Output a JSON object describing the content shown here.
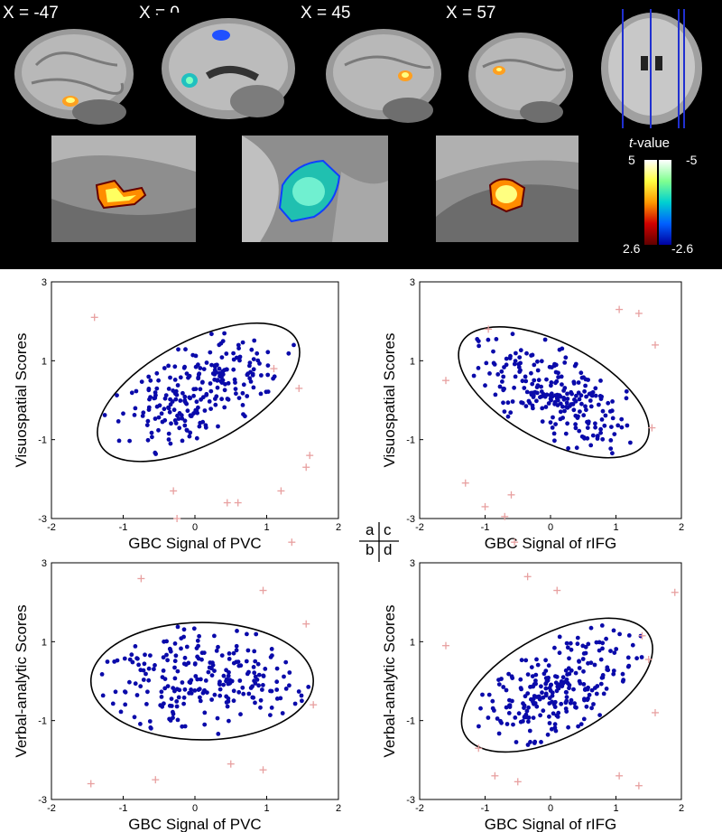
{
  "brain_figure": {
    "slice_labels": [
      "X = -47",
      "X = 0",
      "X = 45",
      "X = 57"
    ],
    "colorbar": {
      "title_italic": "t",
      "title_rest": "-value",
      "pos_max": "5",
      "neg_max": "-5",
      "pos_min": "2.6",
      "neg_min": "-2.6",
      "pos_colors": [
        "#ffffff",
        "#ffff40",
        "#ff9900",
        "#d00000",
        "#600000"
      ],
      "neg_colors": [
        "#ffffff",
        "#80ff90",
        "#00d0d0",
        "#0060ff",
        "#0000a0"
      ]
    }
  },
  "panel_key": {
    "a": "a",
    "b": "b",
    "c": "c",
    "d": "d"
  },
  "chart_data": [
    {
      "panel": "a",
      "type": "scatter",
      "xlabel": "GBC Signal of PVC",
      "ylabel": "Visuospatial Scores",
      "xlim": [
        -2,
        2
      ],
      "ylim": [
        -3,
        3
      ],
      "xticks": [
        -2,
        -1,
        0,
        1,
        2
      ],
      "yticks": [
        -3,
        -1,
        1,
        3
      ],
      "ellipse": {
        "cx": 0.05,
        "cy": 0.2,
        "rx": 1.55,
        "ry": 2.1,
        "angle_deg": -28
      },
      "outliers": [
        [
          -1.4,
          2.1
        ],
        [
          -0.3,
          -2.3
        ],
        [
          -0.25,
          -3.0
        ],
        [
          0.45,
          -2.6
        ],
        [
          0.6,
          -2.6
        ],
        [
          1.1,
          0.8
        ],
        [
          1.45,
          0.3
        ],
        [
          1.6,
          -1.4
        ],
        [
          1.55,
          -1.7
        ],
        [
          1.35,
          -3.6
        ],
        [
          1.2,
          -2.3
        ]
      ],
      "seed": 11
    },
    {
      "panel": "c",
      "type": "scatter",
      "xlabel": "GBC Signal of rIFG",
      "ylabel": "Visuospatial Scores",
      "xlim": [
        -2,
        2
      ],
      "ylim": [
        -3,
        3
      ],
      "xticks": [
        -2,
        -1,
        0,
        1,
        2
      ],
      "yticks": [
        -3,
        -1,
        1,
        3
      ],
      "ellipse": {
        "cx": 0.05,
        "cy": 0.2,
        "rx": 1.6,
        "ry": 2.0,
        "angle_deg": 28
      },
      "outliers": [
        [
          -1.6,
          0.5
        ],
        [
          -1.3,
          -2.1
        ],
        [
          -1.0,
          -2.7
        ],
        [
          -0.95,
          1.8
        ],
        [
          -0.7,
          -2.95
        ],
        [
          -0.6,
          -2.4
        ],
        [
          -0.55,
          -3.6
        ],
        [
          1.35,
          2.2
        ],
        [
          1.6,
          1.4
        ],
        [
          1.55,
          -0.7
        ],
        [
          1.05,
          2.3
        ]
      ],
      "seed": 23
    },
    {
      "panel": "b",
      "type": "scatter",
      "xlabel": "GBC Signal of PVC",
      "ylabel": "Verbal-analytic Scores",
      "xlim": [
        -2,
        2
      ],
      "ylim": [
        -3,
        3
      ],
      "xticks": [
        -2,
        -1,
        0,
        1,
        2
      ],
      "yticks": [
        -3,
        -1,
        1,
        3
      ],
      "ellipse": {
        "cx": 0.1,
        "cy": 0.0,
        "rx": 1.55,
        "ry": 2.4,
        "angle_deg": 0
      },
      "outliers": [
        [
          -1.45,
          -2.6
        ],
        [
          -0.75,
          2.6
        ],
        [
          -0.55,
          -2.5
        ],
        [
          0.5,
          -2.1
        ],
        [
          0.95,
          2.3
        ],
        [
          0.95,
          -2.25
        ],
        [
          1.55,
          1.45
        ],
        [
          1.65,
          -0.6
        ]
      ],
      "seed": 37
    },
    {
      "panel": "d",
      "type": "scatter",
      "xlabel": "GBC Signal of rIFG",
      "ylabel": "Verbal-analytic Scores",
      "xlim": [
        -2,
        2
      ],
      "ylim": [
        -3,
        3
      ],
      "xticks": [
        -2,
        -1,
        0,
        1,
        2
      ],
      "yticks": [
        -3,
        -1,
        1,
        3
      ],
      "ellipse": {
        "cx": 0.1,
        "cy": -0.1,
        "rx": 1.6,
        "ry": 2.1,
        "angle_deg": -28
      },
      "outliers": [
        [
          -1.6,
          0.9
        ],
        [
          -1.1,
          -1.7
        ],
        [
          -0.85,
          -2.4
        ],
        [
          -0.5,
          -2.55
        ],
        [
          -0.35,
          2.65
        ],
        [
          0.1,
          2.3
        ],
        [
          1.05,
          -2.4
        ],
        [
          1.4,
          1.15
        ],
        [
          1.5,
          0.55
        ],
        [
          1.6,
          -0.8
        ],
        [
          1.35,
          -2.65
        ],
        [
          1.9,
          2.25
        ]
      ],
      "seed": 51
    }
  ],
  "colors": {
    "dots": "#0a0aaa",
    "outlier": "#e8a0a0",
    "ellipse": "#000000",
    "brain_bg": "#000000"
  }
}
